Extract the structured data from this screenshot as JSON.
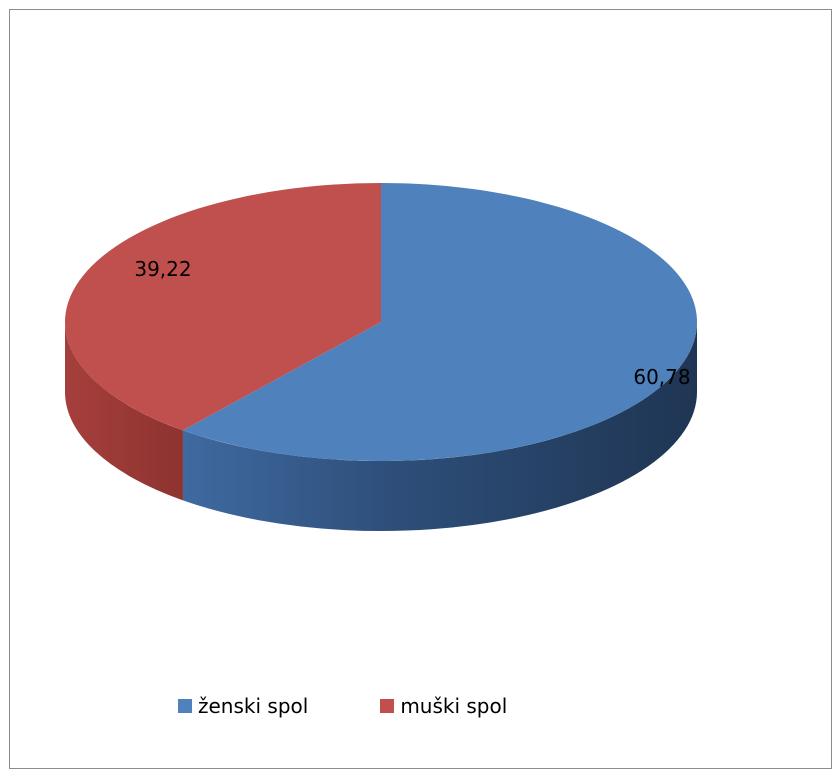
{
  "chart_data": {
    "type": "pie",
    "style": "3d",
    "categories": [
      "ženski spol",
      "muški spol"
    ],
    "values": [
      60.78,
      39.22
    ],
    "data_labels": [
      "60,78",
      "39,22"
    ],
    "colors": [
      "#4f81bd",
      "#c0504d"
    ],
    "legend_position": "bottom"
  }
}
